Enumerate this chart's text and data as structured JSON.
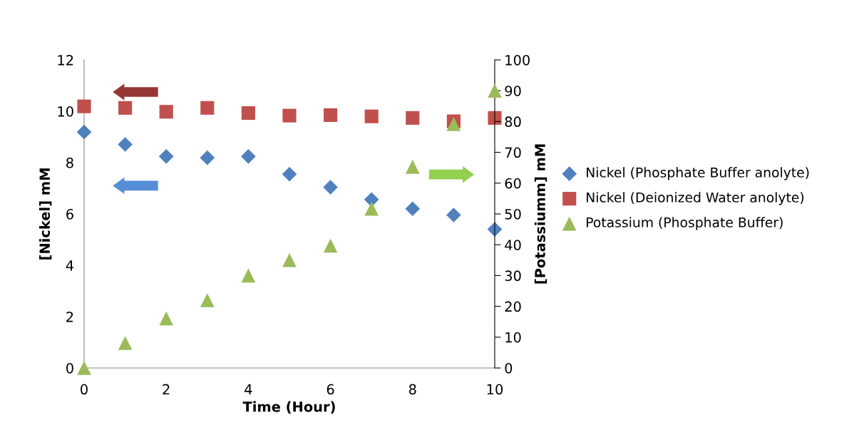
{
  "chart_data": {
    "type": "scatter",
    "xlabel": "Time (Hour)",
    "ylabel": "[Nickel] mM",
    "y2label": "[Potassiumm] mM",
    "x": [
      0,
      1,
      2,
      3,
      4,
      5,
      6,
      7,
      8,
      9,
      10
    ],
    "series": [
      {
        "name": "Nickel (Phosphate Buffer anolyte)",
        "color": "#4f81bd",
        "marker": "diamond",
        "values": [
          9.19,
          8.71,
          8.24,
          8.19,
          8.24,
          7.55,
          7.04,
          6.56,
          6.2,
          5.96,
          5.4
        ]
      },
      {
        "name": "Nickel (Deionized Water anolyte)",
        "color": "#c0504d",
        "marker": "square",
        "values": [
          10.19,
          10.13,
          9.98,
          10.13,
          9.93,
          9.83,
          9.85,
          9.8,
          9.74,
          9.61,
          9.74
        ]
      },
      {
        "name": "Potassium (Phosphate Buffer)",
        "color": "#9bbb59",
        "marker": "triangle",
        "axis": "y2",
        "values": [
          0,
          8.1,
          16.1,
          22,
          30,
          35,
          39.7,
          51.7,
          65.3,
          79.2,
          90
        ]
      }
    ],
    "xlim": [
      0,
      10
    ],
    "xticks": [
      0,
      2,
      4,
      6,
      8,
      10
    ],
    "ylim": [
      0,
      12
    ],
    "yticks": [
      0,
      2,
      4,
      6,
      8,
      10,
      12
    ],
    "y2lim": [
      0,
      100
    ],
    "y2ticks": [
      0,
      10,
      20,
      30,
      40,
      50,
      60,
      70,
      80,
      90,
      100
    ],
    "grid": false,
    "legend": "right"
  }
}
